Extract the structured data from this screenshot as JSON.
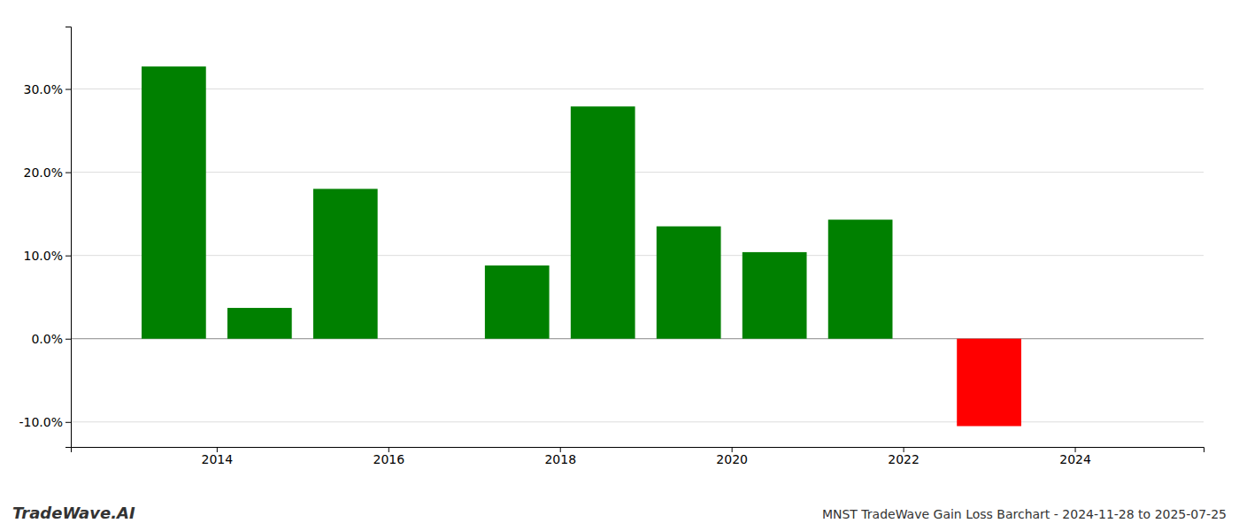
{
  "chart_data": {
    "type": "bar",
    "title": "MNST TradeWave Gain Loss Barchart - 2024-11-28 to 2025-07-25",
    "annotations": [
      "TradeWave.AI"
    ],
    "x": [
      2013.5,
      2014.5,
      2015.5,
      2017.5,
      2018.5,
      2019.5,
      2020.5,
      2021.5,
      2023.0
    ],
    "values": [
      0.327,
      0.037,
      0.18,
      0.088,
      0.279,
      0.135,
      0.104,
      0.143,
      -0.105
    ],
    "colors": [
      "#008000",
      "#008000",
      "#008000",
      "#008000",
      "#008000",
      "#008000",
      "#008000",
      "#008000",
      "#ff0000"
    ],
    "xlim": [
      2012.3,
      2025.5
    ],
    "xticks": [
      2014,
      2016,
      2018,
      2020,
      2022,
      2024
    ],
    "ylim": [
      -0.13,
      0.375
    ],
    "yticks": [
      {
        "value": -0.1,
        "label": "-10.0%"
      },
      {
        "value": 0.0,
        "label": "0.0%"
      },
      {
        "value": 0.1,
        "label": "10.0%"
      },
      {
        "value": 0.2,
        "label": "20.0%"
      },
      {
        "value": 0.3,
        "label": "30.0%"
      }
    ],
    "grid": true
  }
}
